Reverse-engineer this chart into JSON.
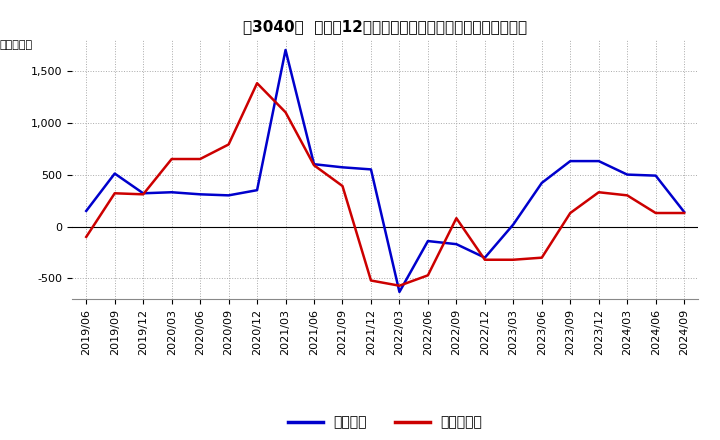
{
  "title": "［3040］  利益の12か月移動合計の対前年同期増減額の推移",
  "ylabel": "（百万円）",
  "background_color": "#ffffff",
  "grid_color": "#aaaaaa",
  "ylim": [
    -700,
    1800
  ],
  "yticks": [
    -500,
    0,
    500,
    1000,
    1500
  ],
  "x_labels": [
    "2019/06",
    "2019/09",
    "2019/12",
    "2020/03",
    "2020/06",
    "2020/09",
    "2020/12",
    "2021/03",
    "2021/06",
    "2021/09",
    "2021/12",
    "2022/03",
    "2022/06",
    "2022/09",
    "2022/12",
    "2023/03",
    "2023/06",
    "2023/09",
    "2023/12",
    "2024/03",
    "2024/06",
    "2024/09"
  ],
  "keijo_rieki": [
    150,
    510,
    320,
    330,
    310,
    300,
    350,
    1700,
    600,
    570,
    550,
    -630,
    -140,
    -170,
    -300,
    20,
    420,
    630,
    630,
    500,
    490,
    140
  ],
  "touki_jun_rieki": [
    -100,
    320,
    310,
    650,
    650,
    790,
    1380,
    1100,
    590,
    390,
    -520,
    -570,
    -470,
    80,
    -320,
    -320,
    -300,
    130,
    330,
    300,
    130,
    130
  ],
  "line_color_keijo": "#0000cc",
  "line_color_touki": "#cc0000",
  "legend_labels": [
    "経常利益",
    "当期純利益"
  ],
  "title_fontsize": 11,
  "tick_fontsize": 8,
  "ylabel_fontsize": 8
}
